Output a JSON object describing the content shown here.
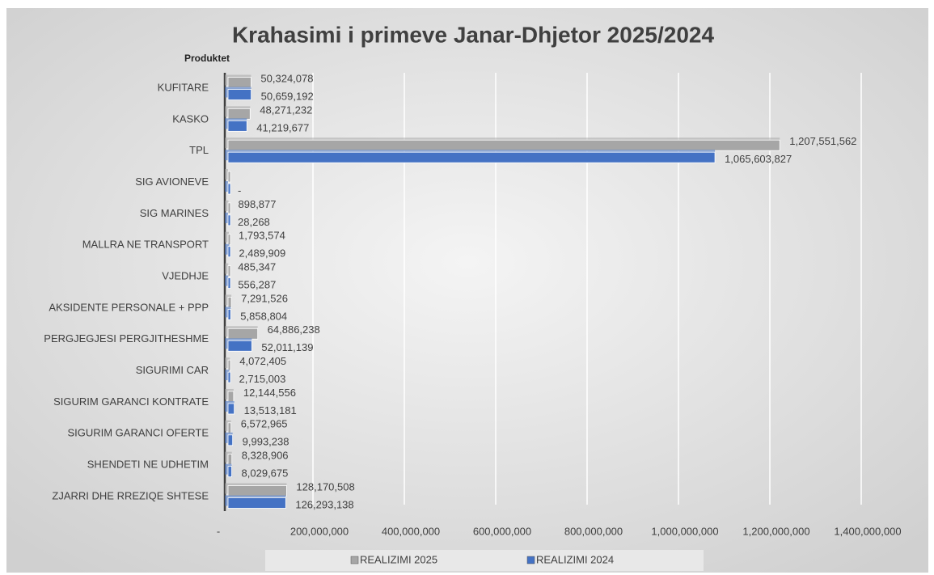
{
  "chart_data": {
    "type": "hbar",
    "title": "Krahasimi i primeve Janar-Dhjetor 2025/2024",
    "y_axis_label": "Produktet",
    "categories": [
      "KUFITARE",
      "KASKO",
      "TPL",
      "SIG AVIONEVE",
      "SIG MARINES",
      "MALLRA NE TRANSPORT",
      "VJEDHJE",
      "AKSIDENTE PERSONALE + PPP",
      "PERGJEGJESI PERGJITHESHME",
      "SIGURIMI CAR",
      "SIGURIM GARANCI KONTRATE",
      "SIGURIM GARANCI OFERTE",
      "SHENDETI NE UDHETIM",
      "ZJARRI DHE RREZIQE SHTESE"
    ],
    "series": [
      {
        "name": "REALIZIMI 2025",
        "color": "#a6a6a6",
        "values": [
          50324078,
          48271232,
          1207551562,
          0,
          898877,
          1793574,
          485347,
          7291526,
          64886238,
          4072405,
          12144556,
          6572965,
          8328906,
          128170508
        ],
        "value_labels": [
          "50,324,078",
          "48,271,232",
          "1,207,551,562",
          null,
          "898,877",
          "1,793,574",
          "485,347",
          "7,291,526",
          "64,886,238",
          "4,072,405",
          "12,144,556",
          "6,572,965",
          "8,328,906",
          "128,170,508"
        ]
      },
      {
        "name": "REALIZIMI 2024",
        "color": "#4472c4",
        "values": [
          50659192,
          41219677,
          1065603827,
          0,
          28268,
          2489909,
          556287,
          5858804,
          52011139,
          2715003,
          13513181,
          9993238,
          8029675,
          126293138
        ],
        "value_labels": [
          "50,659,192",
          "41,219,677",
          "1,065,603,827",
          "-",
          "28,268",
          "2,489,909",
          "556,287",
          "5,858,804",
          "52,011,139",
          "2,715,003",
          "13,513,181",
          "9,993,238",
          "8,029,675",
          "126,293,138"
        ]
      }
    ],
    "xlim": [
      0,
      1400000000
    ],
    "xticks": [
      {
        "value": 0,
        "label": "-"
      },
      {
        "value": 200000000,
        "label": "200,000,000"
      },
      {
        "value": 400000000,
        "label": "400,000,000"
      },
      {
        "value": 600000000,
        "label": "600,000,000"
      },
      {
        "value": 800000000,
        "label": "800,000,000"
      },
      {
        "value": 1000000000,
        "label": "1,000,000,000"
      },
      {
        "value": 1200000000,
        "label": "1,200,000,000"
      },
      {
        "value": 1400000000,
        "label": "1,400,000,000"
      }
    ],
    "grid": true,
    "legend": "bottom"
  }
}
